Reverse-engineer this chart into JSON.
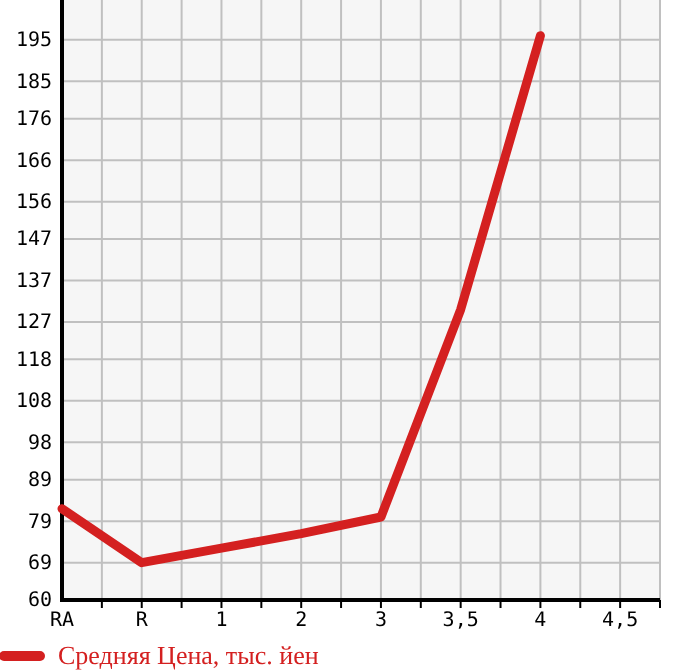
{
  "chart_data": {
    "type": "line",
    "categories": [
      "RA",
      "R",
      "1",
      "2",
      "3",
      "3,5",
      "4",
      "4,5"
    ],
    "series": [
      {
        "name": "Средняя Цена, тыс. йен",
        "color": "#d42020",
        "values": [
          82,
          69,
          72.5,
          76,
          80,
          130,
          196,
          null
        ]
      }
    ],
    "ylim": [
      60,
      204.6
    ],
    "yticks": [
      60,
      69,
      79,
      89,
      98,
      108,
      118,
      127,
      137,
      147,
      156,
      166,
      176,
      185,
      195
    ],
    "grid": true,
    "legend": "bottom",
    "marker": "none",
    "line_style": "solid"
  }
}
